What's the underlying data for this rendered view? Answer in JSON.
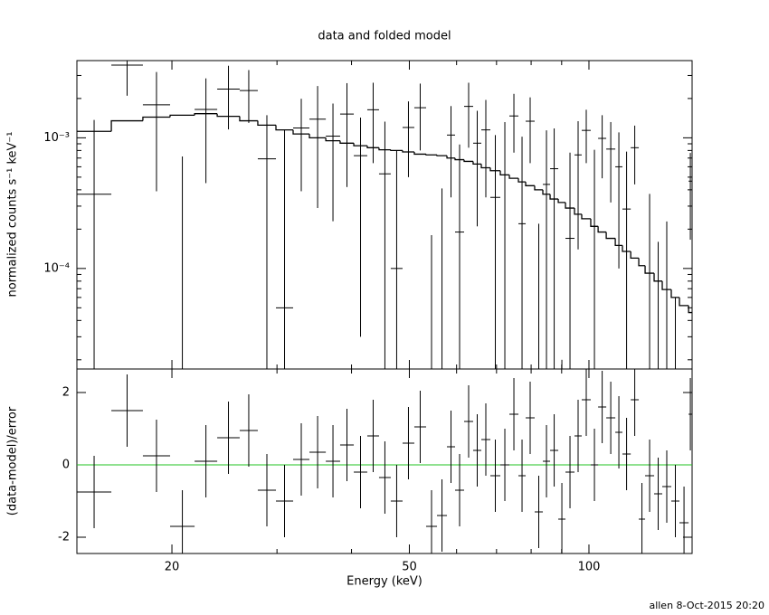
{
  "chart_data": {
    "type": "spectrum",
    "title": "data and folded model",
    "xlabel": "Energy (keV)",
    "footer": "allen  8-Oct-2015 20:20",
    "xlog": true,
    "xlim": [
      13.86,
      148.9
    ],
    "xticks": [
      20,
      50,
      100
    ],
    "xminorticks": [
      30,
      40,
      60,
      70,
      80,
      90
    ],
    "bins": [
      13.86,
      15.83,
      17.88,
      19.86,
      21.83,
      23.82,
      25.98,
      27.86,
      29.88,
      31.93,
      34.0,
      36.22,
      38.28,
      40.35,
      42.51,
      44.48,
      46.54,
      48.71,
      50.97,
      53.34,
      55.63,
      57.81,
      59.65,
      61.77,
      63.96,
      66.01,
      68.35,
      71.03,
      73.56,
      76.17,
      78.33,
      81.1,
      83.7,
      86.08,
      88.83,
      91.34,
      94.58,
      97.25,
      100.7,
      103.6,
      106.9,
      110.7,
      113.8,
      117.5,
      121.2,
      124.2,
      128.6,
      132.7,
      137.4,
      141.8,
      146.9,
      148.9
    ],
    "top": {
      "ylabel": "normalized counts s⁻¹ keV⁻¹",
      "ylog": true,
      "ylim": [
        1.7e-05,
        0.0039
      ],
      "yticks": [
        {
          "value": 0.001,
          "label": "10⁻³"
        },
        {
          "value": 0.0001,
          "label": "10⁻⁴"
        }
      ],
      "yminorticks": [
        2e-05,
        3e-05,
        4e-05,
        5e-05,
        6e-05,
        7e-05,
        8e-05,
        9e-05,
        0.0002,
        0.0003,
        0.0004,
        0.0005,
        0.0006,
        0.0007,
        0.0008,
        0.0009,
        0.002,
        0.003
      ],
      "data": {
        "color": "#000000",
        "values": [
          0.00037,
          0.0036,
          0.00179,
          -0.00038,
          0.00165,
          0.00236,
          0.0023,
          0.00069,
          5e-05,
          0.00119,
          0.00139,
          0.00103,
          0.00152,
          0.00073,
          0.00164,
          0.00053,
          0.0001,
          0.0012,
          0.0017,
          -0.00062,
          -0.00039,
          0.00105,
          0.00019,
          0.00174,
          0.00091,
          0.00115,
          0.00035,
          0.00052,
          0.00147,
          0.00022,
          0.00134,
          -0.00038,
          0.00044,
          0.00058,
          -0.00058,
          0.00017,
          0.00074,
          0.00114,
          0.00021,
          0.00099,
          0.00082,
          0.0006,
          0.000285,
          0.00084,
          -0.000645,
          -2.8e-05,
          -0.00024,
          -0.000171,
          -0.00034,
          -0.000428,
          0.000466
        ],
        "errors": [
          0.001,
          0.0015,
          0.0014,
          0.0011,
          0.0012,
          0.0012,
          0.001,
          0.0008,
          0.0011,
          0.0008,
          0.0011,
          0.0008,
          0.0011,
          0.0007,
          0.001,
          0.0008,
          0.0007,
          0.0007,
          0.0009,
          0.0008,
          0.0008,
          0.0007,
          0.0007,
          0.0009,
          0.0007,
          0.0008,
          0.0007,
          0.0008,
          0.0007,
          0.0008,
          0.0007,
          0.0006,
          0.0007,
          0.0006,
          0.0006,
          0.0006,
          0.0006,
          0.0005,
          0.0006,
          0.0005,
          0.0005,
          0.0005,
          0.0005,
          0.0004,
          0.0005,
          0.0004,
          0.0004,
          0.0004,
          0.0004,
          0.0003,
          0.0003
        ]
      },
      "model": {
        "color": "#000000",
        "values": [
          0.00112,
          0.00135,
          0.00144,
          0.00149,
          0.00153,
          0.00146,
          0.00135,
          0.00125,
          0.00115,
          0.00107,
          0.001,
          0.00095,
          0.00091,
          0.00087,
          0.00084,
          0.00081,
          0.0008,
          0.00078,
          0.00075,
          0.00074,
          0.00073,
          0.0007,
          0.00068,
          0.00066,
          0.00063,
          0.00059,
          0.00056,
          0.00052,
          0.00049,
          0.00046,
          0.00043,
          0.0004,
          0.00037,
          0.00034,
          0.00032,
          0.00029,
          0.00026,
          0.00024,
          0.00021,
          0.00019,
          0.00017,
          0.00015,
          0.000135,
          0.00012,
          0.000105,
          9.2e-05,
          8e-05,
          6.9e-05,
          6e-05,
          5.2e-05,
          4.6e-05
        ]
      }
    },
    "bottom": {
      "ylabel": "(data-model)/error",
      "ylim": [
        -2.45,
        2.65
      ],
      "yticks": [
        -2,
        0,
        2
      ],
      "reference": {
        "value": 0,
        "color": "#22c322"
      },
      "data": {
        "color": "#000000",
        "values": [
          -0.75,
          1.5,
          0.25,
          -1.7,
          0.1,
          0.75,
          0.95,
          -0.7,
          -1.0,
          0.15,
          0.35,
          0.1,
          0.55,
          -0.2,
          0.8,
          -0.35,
          -1.0,
          0.6,
          1.05,
          -1.7,
          -1.4,
          0.5,
          -0.7,
          1.2,
          0.4,
          0.7,
          -0.3,
          0.0,
          1.4,
          -0.3,
          1.3,
          -1.3,
          0.1,
          0.4,
          -1.5,
          -0.2,
          0.8,
          1.8,
          0.0,
          1.6,
          1.3,
          0.9,
          0.3,
          1.8,
          -1.5,
          -0.3,
          -0.8,
          -0.6,
          -1.0,
          -1.6,
          1.4
        ],
        "errors": [
          1,
          1,
          1,
          1,
          1,
          1,
          1,
          1,
          1,
          1,
          1,
          1,
          1,
          1,
          1,
          1,
          1,
          1,
          1,
          1,
          1,
          1,
          1,
          1,
          1,
          1,
          1,
          1,
          1,
          1,
          1,
          1,
          1,
          1,
          1,
          1,
          1,
          1,
          1,
          1,
          1,
          1,
          1,
          1,
          1,
          1,
          1,
          1,
          1,
          1,
          1
        ]
      }
    }
  }
}
